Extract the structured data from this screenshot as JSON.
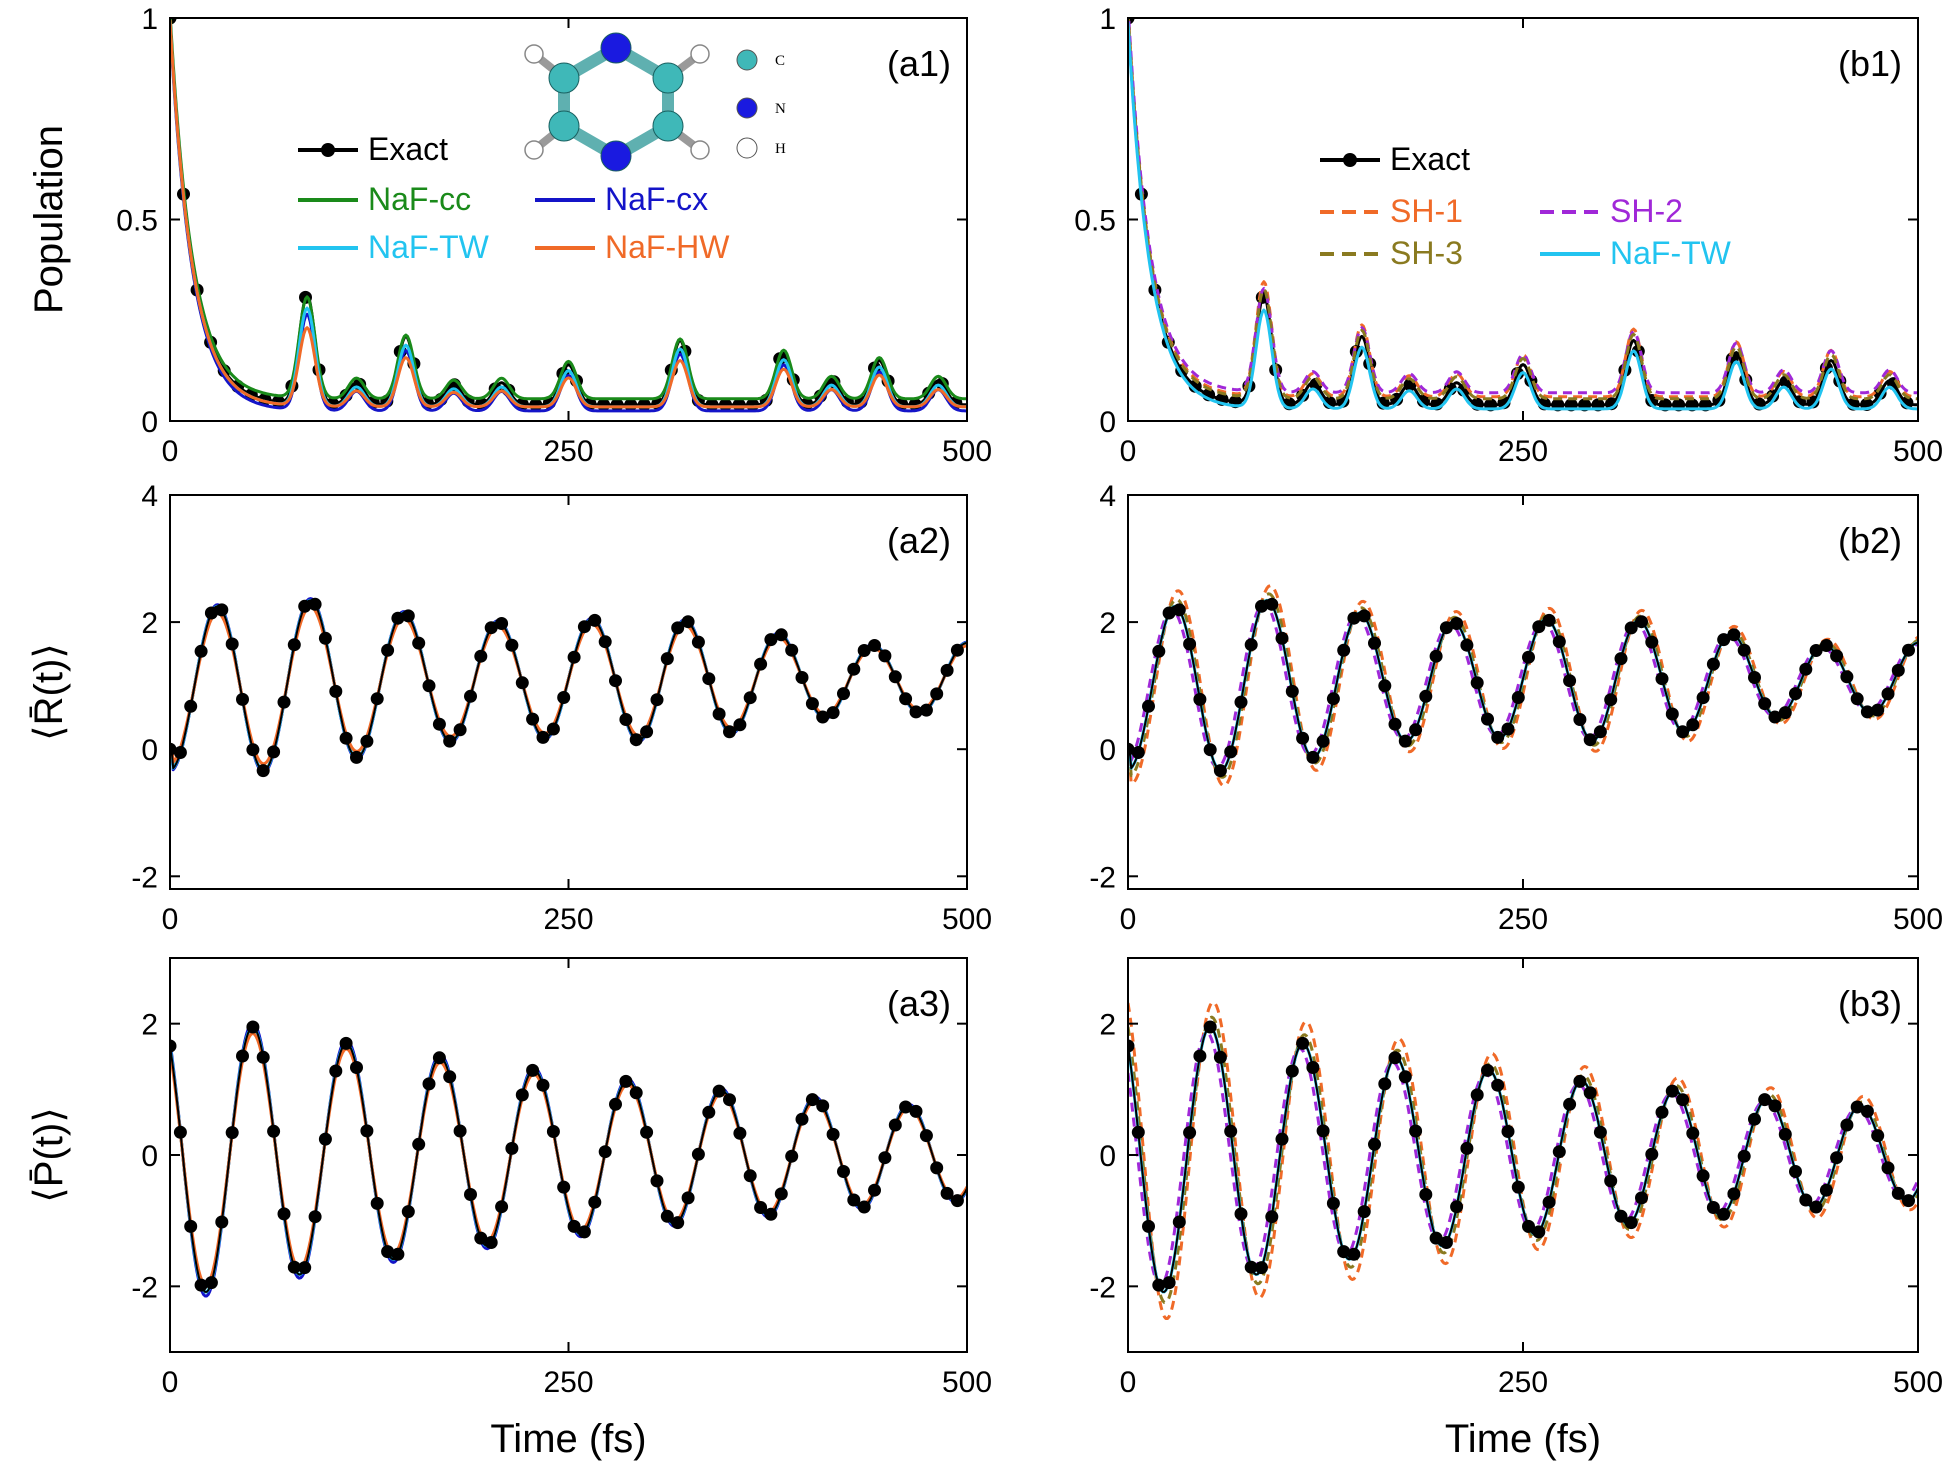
{
  "chart_data": [
    {
      "id": "a1",
      "type": "line",
      "panel_label": "(a1)",
      "ylabel": "Population",
      "xlabel": "",
      "xlim": [
        0,
        500
      ],
      "ylim": [
        0,
        1
      ],
      "xticks": [
        "0",
        "250",
        "500"
      ],
      "yticks": [
        "0",
        "0.5",
        "1"
      ],
      "legend": {
        "placement": "top-left",
        "entries": [
          {
            "name": "Exact",
            "color": "#000000",
            "style": "line-dot"
          },
          {
            "name": "NaF-cc",
            "color": "#1a8a1a",
            "style": "solid"
          },
          {
            "name": "NaF-cx",
            "color": "#1414c8",
            "style": "solid"
          },
          {
            "name": "NaF-TW",
            "color": "#22c4f0",
            "style": "solid"
          },
          {
            "name": "NaF-HW",
            "color": "#f06a28",
            "style": "solid"
          }
        ]
      },
      "inset": {
        "labels": [
          "C",
          "N",
          "H"
        ],
        "colors": [
          "#3fb8b8",
          "#1a1ae0",
          "#ffffff"
        ]
      },
      "series": [
        {
          "name": "Exact",
          "kind": "pop",
          "amp": 1.0,
          "shift": 0.0,
          "base": 0.0,
          "color": "#000000",
          "width": 3,
          "markers": true
        },
        {
          "name": "NaF-cc",
          "kind": "pop",
          "amp": 0.93,
          "shift": 0.0,
          "base": 0.015,
          "color": "#1a8a1a",
          "width": 3
        },
        {
          "name": "NaF-cx",
          "kind": "pop",
          "amp": 0.88,
          "shift": 0.0,
          "base": -0.015,
          "color": "#1414c8",
          "width": 3
        },
        {
          "name": "NaF-TW",
          "kind": "pop",
          "amp": 0.9,
          "shift": 0.0,
          "base": -0.005,
          "color": "#22c4f0",
          "width": 3
        },
        {
          "name": "NaF-HW",
          "kind": "pop",
          "amp": 0.72,
          "shift": 0.0,
          "base": -0.005,
          "color": "#f06a28",
          "width": 3
        }
      ]
    },
    {
      "id": "b1",
      "type": "line",
      "panel_label": "(b1)",
      "ylabel": "",
      "xlabel": "",
      "xlim": [
        0,
        500
      ],
      "ylim": [
        0,
        1
      ],
      "xticks": [
        "0",
        "250",
        "500"
      ],
      "yticks": [
        "0",
        "0.5",
        "1"
      ],
      "legend": {
        "placement": "top-left",
        "entries": [
          {
            "name": "Exact",
            "color": "#000000",
            "style": "line-dot"
          },
          {
            "name": "SH-1",
            "color": "#f06a28",
            "style": "dashed"
          },
          {
            "name": "SH-2",
            "color": "#a028d8",
            "style": "dashed"
          },
          {
            "name": "SH-3",
            "color": "#8a7a20",
            "style": "dashed"
          },
          {
            "name": "NaF-TW",
            "color": "#22c4f0",
            "style": "solid"
          }
        ]
      },
      "series": [
        {
          "name": "Exact",
          "kind": "pop",
          "amp": 1.0,
          "shift": 0.0,
          "base": 0.0,
          "color": "#000000",
          "width": 3,
          "markers": true
        },
        {
          "name": "SH-1",
          "kind": "pop",
          "amp": 1.05,
          "shift": 0.0,
          "base": 0.02,
          "color": "#f06a28",
          "width": 3,
          "dash": "9,6"
        },
        {
          "name": "SH-2",
          "kind": "pop",
          "amp": 0.95,
          "shift": 0.0,
          "base": 0.03,
          "color": "#a028d8",
          "width": 3,
          "dash": "9,6"
        },
        {
          "name": "SH-3",
          "kind": "pop",
          "amp": 1.0,
          "shift": 0.0,
          "base": 0.015,
          "color": "#8a7a20",
          "width": 3,
          "dash": "9,6"
        },
        {
          "name": "NaF-TW",
          "kind": "pop",
          "amp": 0.9,
          "shift": 0.0,
          "base": -0.01,
          "color": "#22c4f0",
          "width": 3
        }
      ]
    },
    {
      "id": "a2",
      "type": "line",
      "panel_label": "(a2)",
      "ylabel": "⟨R̄(t)⟩",
      "xlabel": "",
      "xlim": [
        0,
        500
      ],
      "ylim": [
        -2.2,
        4
      ],
      "xticks": [
        "0",
        "250",
        "500"
      ],
      "yticks": [
        "-2",
        "0",
        "2",
        "4"
      ],
      "series": [
        {
          "name": "NaF-cc",
          "kind": "R",
          "amp": 1.0,
          "shift": 0.0,
          "color": "#1a8a1a",
          "width": 3
        },
        {
          "name": "NaF-cx",
          "kind": "R",
          "amp": 1.02,
          "shift": 0.0,
          "color": "#1414c8",
          "width": 3
        },
        {
          "name": "NaF-TW",
          "kind": "R",
          "amp": 1.0,
          "shift": 0.0,
          "color": "#22c4f0",
          "width": 3
        },
        {
          "name": "NaF-HW",
          "kind": "R",
          "amp": 0.92,
          "shift": 0.0,
          "color": "#f06a28",
          "width": 3
        },
        {
          "name": "Exact",
          "kind": "R",
          "amp": 1.0,
          "shift": 0.0,
          "color": "#000000",
          "width": 2,
          "markers": true
        }
      ]
    },
    {
      "id": "b2",
      "type": "line",
      "panel_label": "(b2)",
      "ylabel": "",
      "xlabel": "",
      "xlim": [
        0,
        500
      ],
      "ylim": [
        -2.2,
        4
      ],
      "xticks": [
        "0",
        "250",
        "500"
      ],
      "yticks": [
        "-2",
        "0",
        "2",
        "4"
      ],
      "series": [
        {
          "name": "SH-1",
          "kind": "R",
          "amp": 1.18,
          "shift": -2.0,
          "color": "#f06a28",
          "width": 3,
          "dash": "9,6"
        },
        {
          "name": "SH-2",
          "kind": "R",
          "amp": 0.96,
          "shift": 2.0,
          "color": "#a028d8",
          "width": 3,
          "dash": "9,6"
        },
        {
          "name": "SH-3",
          "kind": "R",
          "amp": 1.08,
          "shift": -1.0,
          "color": "#8a7a20",
          "width": 3,
          "dash": "9,6"
        },
        {
          "name": "NaF-TW",
          "kind": "R",
          "amp": 1.0,
          "shift": 0.0,
          "color": "#22c4f0",
          "width": 3
        },
        {
          "name": "Exact",
          "kind": "R",
          "amp": 1.0,
          "shift": 0.0,
          "color": "#000000",
          "width": 2,
          "markers": true
        }
      ]
    },
    {
      "id": "a3",
      "type": "line",
      "panel_label": "(a3)",
      "ylabel": "⟨P̄(t)⟩",
      "xlabel": "Time (fs)",
      "xlim": [
        0,
        500
      ],
      "ylim": [
        -3,
        3
      ],
      "xticks": [
        "0",
        "250",
        "500"
      ],
      "yticks": [
        "-2",
        "0",
        "2"
      ],
      "series": [
        {
          "name": "NaF-cc",
          "kind": "P",
          "amp": 1.0,
          "shift": 0.0,
          "color": "#1a8a1a",
          "width": 3
        },
        {
          "name": "NaF-cx",
          "kind": "P",
          "amp": 1.03,
          "shift": 0.0,
          "color": "#1414c8",
          "width": 3
        },
        {
          "name": "NaF-TW",
          "kind": "P",
          "amp": 1.0,
          "shift": 0.0,
          "color": "#22c4f0",
          "width": 3
        },
        {
          "name": "NaF-HW",
          "kind": "P",
          "amp": 0.95,
          "shift": 0.0,
          "color": "#f06a28",
          "width": 3
        },
        {
          "name": "Exact",
          "kind": "P",
          "amp": 1.0,
          "shift": 0.0,
          "color": "#000000",
          "width": 2,
          "markers": true
        }
      ]
    },
    {
      "id": "b3",
      "type": "line",
      "panel_label": "(b3)",
      "ylabel": "",
      "xlabel": "Time (fs)",
      "xlim": [
        0,
        500
      ],
      "ylim": [
        -3,
        3
      ],
      "xticks": [
        "0",
        "250",
        "500"
      ],
      "yticks": [
        "-2",
        "0",
        "2"
      ],
      "series": [
        {
          "name": "SH-1",
          "kind": "P",
          "amp": 1.2,
          "shift": -2.0,
          "color": "#f06a28",
          "width": 3,
          "dash": "9,6"
        },
        {
          "name": "SH-2",
          "kind": "P",
          "amp": 0.95,
          "shift": 2.0,
          "color": "#a028d8",
          "width": 3,
          "dash": "9,6"
        },
        {
          "name": "SH-3",
          "kind": "P",
          "amp": 1.08,
          "shift": -1.0,
          "color": "#8a7a20",
          "width": 3,
          "dash": "9,6"
        },
        {
          "name": "NaF-TW",
          "kind": "P",
          "amp": 1.0,
          "shift": 0.0,
          "color": "#22c4f0",
          "width": 3
        },
        {
          "name": "Exact",
          "kind": "P",
          "amp": 1.0,
          "shift": 0.0,
          "color": "#000000",
          "width": 2,
          "markers": true
        }
      ]
    }
  ]
}
